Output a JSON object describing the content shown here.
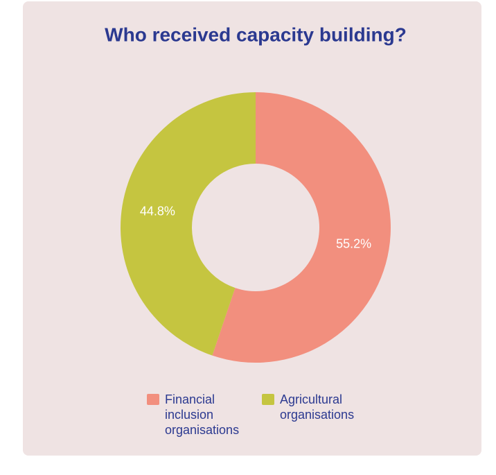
{
  "chart_data": {
    "type": "donut",
    "title": "Who received capacity building?",
    "categories": [
      "Financial inclusion organisations",
      "Agricultural organisations"
    ],
    "values": [
      55.2,
      44.8
    ],
    "value_labels": [
      "55.2%",
      "44.8%"
    ],
    "colors": [
      "#f28f7e",
      "#c5c540"
    ]
  }
}
